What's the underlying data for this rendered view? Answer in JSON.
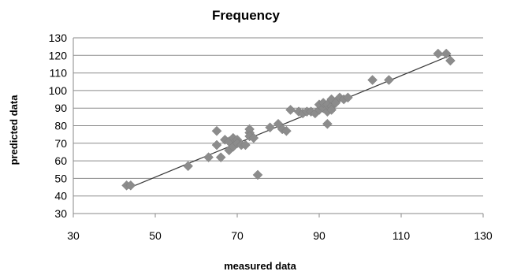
{
  "chart_data": {
    "type": "scatter",
    "title": "Frequency",
    "xlabel": "measured data",
    "ylabel": "predicted data",
    "xlim": [
      30,
      130
    ],
    "ylim": [
      30,
      130
    ],
    "xticks": [
      "30",
      "50",
      "70",
      "90",
      "110",
      "130"
    ],
    "yticks": [
      "30",
      "40",
      "50",
      "60",
      "70",
      "80",
      "90",
      "100",
      "110",
      "120",
      "130"
    ],
    "grid": "horizontal",
    "legend": "none",
    "marker": "diamond",
    "marker_color": "#8c8c8c",
    "trendline": {
      "type": "linear",
      "x": [
        43,
        122
      ],
      "y": [
        44,
        120
      ],
      "color": "#3a3a3a"
    },
    "points": [
      {
        "x": 43,
        "y": 46
      },
      {
        "x": 44,
        "y": 46
      },
      {
        "x": 58,
        "y": 57
      },
      {
        "x": 63,
        "y": 62
      },
      {
        "x": 65,
        "y": 77
      },
      {
        "x": 65,
        "y": 69
      },
      {
        "x": 66,
        "y": 62
      },
      {
        "x": 67,
        "y": 72
      },
      {
        "x": 68,
        "y": 66
      },
      {
        "x": 68,
        "y": 71
      },
      {
        "x": 69,
        "y": 73
      },
      {
        "x": 69,
        "y": 68
      },
      {
        "x": 70,
        "y": 72
      },
      {
        "x": 70,
        "y": 70
      },
      {
        "x": 71,
        "y": 69
      },
      {
        "x": 72,
        "y": 69
      },
      {
        "x": 73,
        "y": 76
      },
      {
        "x": 73,
        "y": 78
      },
      {
        "x": 73,
        "y": 74
      },
      {
        "x": 74,
        "y": 73
      },
      {
        "x": 75,
        "y": 52
      },
      {
        "x": 78,
        "y": 79
      },
      {
        "x": 80,
        "y": 81
      },
      {
        "x": 81,
        "y": 78
      },
      {
        "x": 82,
        "y": 77
      },
      {
        "x": 83,
        "y": 89
      },
      {
        "x": 85,
        "y": 88
      },
      {
        "x": 86,
        "y": 87
      },
      {
        "x": 87,
        "y": 88
      },
      {
        "x": 88,
        "y": 88
      },
      {
        "x": 89,
        "y": 87
      },
      {
        "x": 90,
        "y": 89
      },
      {
        "x": 90,
        "y": 92
      },
      {
        "x": 91,
        "y": 90
      },
      {
        "x": 91,
        "y": 93
      },
      {
        "x": 92,
        "y": 88
      },
      {
        "x": 92,
        "y": 81
      },
      {
        "x": 92,
        "y": 92
      },
      {
        "x": 93,
        "y": 91
      },
      {
        "x": 93,
        "y": 89
      },
      {
        "x": 93,
        "y": 95
      },
      {
        "x": 94,
        "y": 93
      },
      {
        "x": 95,
        "y": 96
      },
      {
        "x": 96,
        "y": 95
      },
      {
        "x": 97,
        "y": 96
      },
      {
        "x": 103,
        "y": 106
      },
      {
        "x": 107,
        "y": 106
      },
      {
        "x": 119,
        "y": 121
      },
      {
        "x": 121,
        "y": 121
      },
      {
        "x": 122,
        "y": 117
      }
    ]
  }
}
